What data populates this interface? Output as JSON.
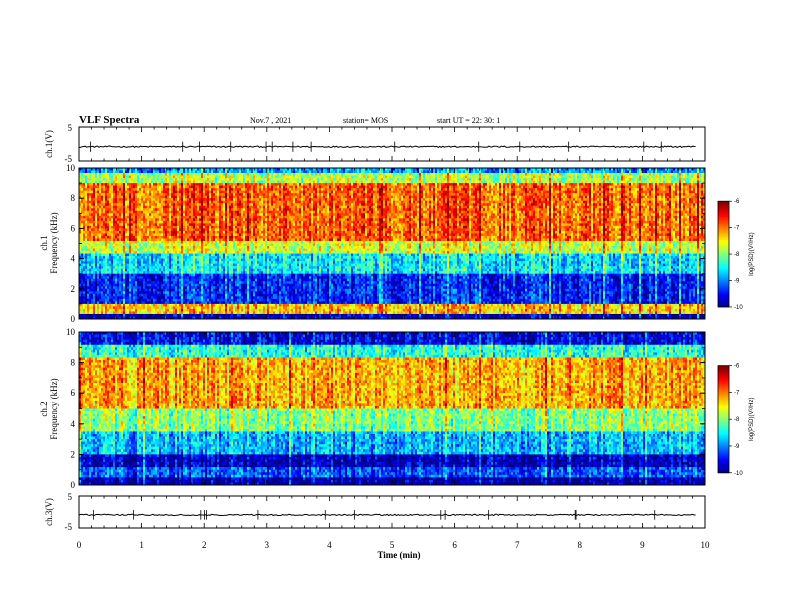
{
  "header": {
    "title": "VLF Spectra",
    "date": "Nov.7 , 2021",
    "station": "station= MOS",
    "start": "start UT = 22: 30: 1"
  },
  "chart_data": [
    {
      "type": "line",
      "id": "ch1-waveform",
      "ylabel": "ch.1(V)",
      "ylim": [
        -5,
        5
      ],
      "yticks": [
        "5",
        "-5"
      ],
      "xlim": [
        0,
        10
      ],
      "series": [
        {
          "values_approx_level": -0.8
        }
      ]
    },
    {
      "type": "heatmap",
      "id": "ch1-spectrogram",
      "ylabel_top": "ch.1",
      "ylabel": "Frequency (kHz)",
      "ylim": [
        0,
        10
      ],
      "yticks": [
        "10",
        "8",
        "6",
        "4",
        "2",
        "0"
      ],
      "xlim": [
        0,
        10
      ],
      "colorbar": {
        "label": "log(PSD)(V²/Hz)",
        "range": [
          -10,
          -6
        ],
        "ticks": [
          "-6",
          "-7",
          "-8",
          "-9",
          "-10"
        ]
      },
      "bands_kHz_log_psd": [
        {
          "f": [
            0,
            0.3
          ],
          "v": -9.8
        },
        {
          "f": [
            0.3,
            1.0
          ],
          "v": -7.3
        },
        {
          "f": [
            1.0,
            3.0
          ],
          "v": -9.4
        },
        {
          "f": [
            3.0,
            4.3
          ],
          "v": -8.6
        },
        {
          "f": [
            4.3,
            5.2
          ],
          "v": -7.7
        },
        {
          "f": [
            5.2,
            9.0
          ],
          "v": -6.9
        },
        {
          "f": [
            9.0,
            9.7
          ],
          "v": -7.8
        },
        {
          "f": [
            9.7,
            10.0
          ],
          "v": -8.9
        }
      ]
    },
    {
      "type": "heatmap",
      "id": "ch2-spectrogram",
      "ylabel_top": "ch.2",
      "ylabel": "Frequency (kHz)",
      "ylim": [
        0,
        10
      ],
      "yticks": [
        "10",
        "8",
        "6",
        "4",
        "2",
        "0"
      ],
      "xlim": [
        0,
        10
      ],
      "colorbar": {
        "label": "log(PSD)(V²/Hz)",
        "range": [
          -10,
          -6
        ],
        "ticks": [
          "-6",
          "-7",
          "-8",
          "-9",
          "-10"
        ]
      },
      "bands_kHz_log_psd": [
        {
          "f": [
            0,
            0.5
          ],
          "v": -9.9
        },
        {
          "f": [
            0.5,
            1.2
          ],
          "v": -9.2
        },
        {
          "f": [
            1.2,
            2.0
          ],
          "v": -9.8
        },
        {
          "f": [
            2.0,
            3.5
          ],
          "v": -8.8
        },
        {
          "f": [
            3.5,
            5.0
          ],
          "v": -8.0
        },
        {
          "f": [
            5.0,
            8.3
          ],
          "v": -7.2
        },
        {
          "f": [
            8.3,
            9.2
          ],
          "v": -8.4
        },
        {
          "f": [
            9.2,
            10.0
          ],
          "v": -9.6
        }
      ]
    },
    {
      "type": "line",
      "id": "ch3-waveform",
      "ylabel": "ch.3(V)",
      "ylim": [
        -5,
        5
      ],
      "yticks": [
        "5",
        "-5"
      ],
      "xlim": [
        0,
        10
      ],
      "series": [
        {
          "values_approx_level": -0.9
        }
      ]
    }
  ],
  "xaxis": {
    "label": "Time (min)",
    "ticks": [
      "0",
      "1",
      "2",
      "3",
      "4",
      "5",
      "6",
      "7",
      "8",
      "9",
      "10"
    ]
  }
}
